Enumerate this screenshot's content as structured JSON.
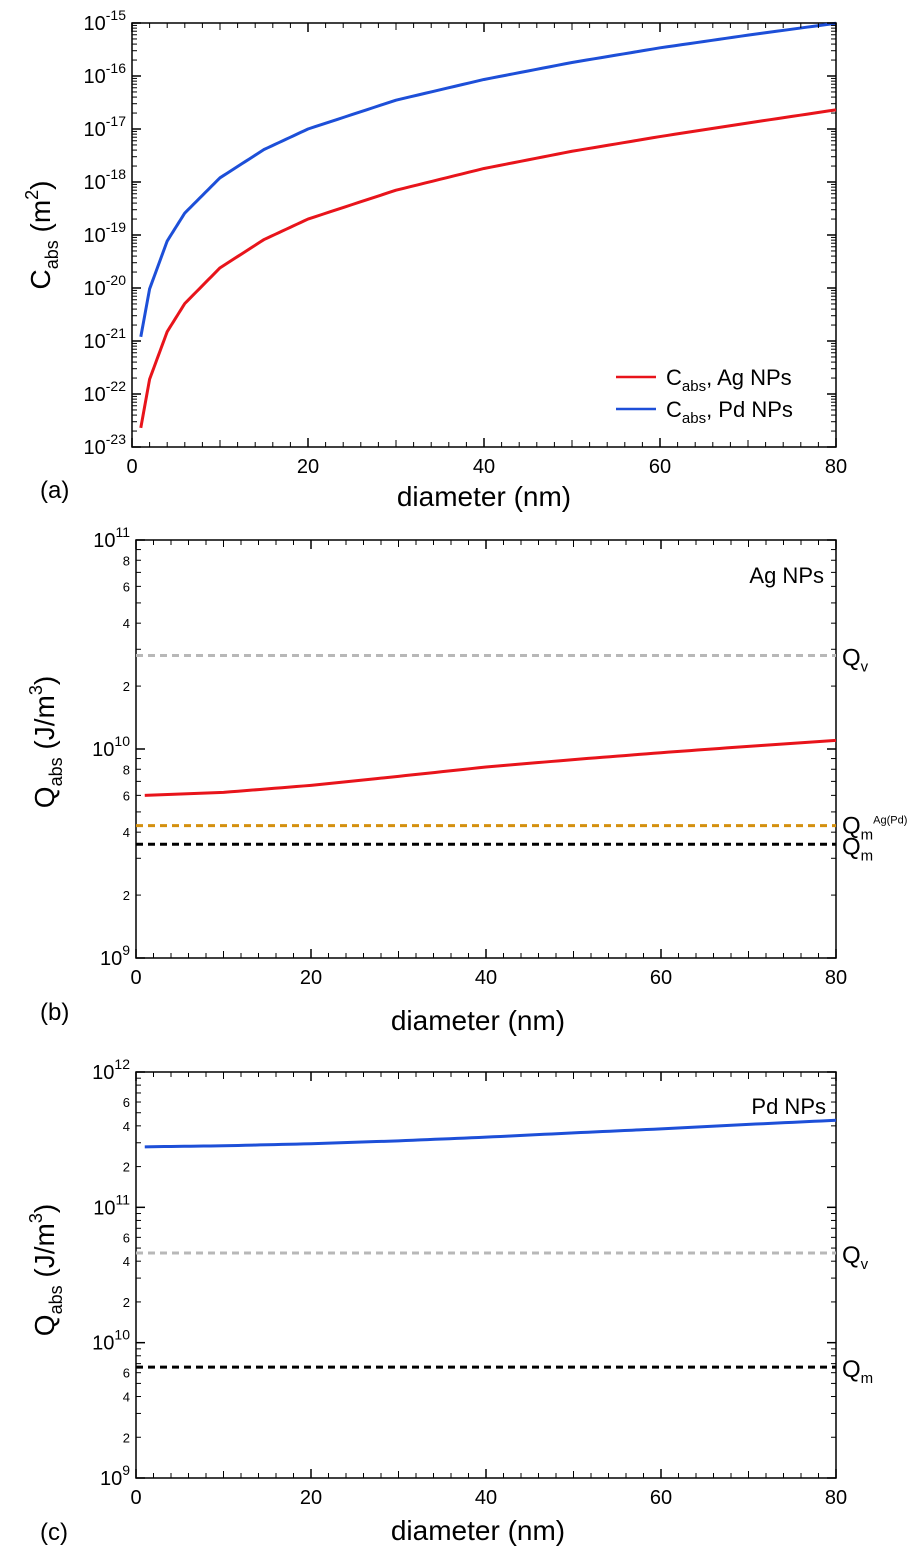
{
  "chart_data": [
    {
      "panel_label": "(a)",
      "type": "line",
      "xlabel": "diameter (nm)",
      "ylabel": {
        "main": "C",
        "sub": "abs",
        "unit_open": " (m",
        "unit_sup": "2",
        "unit_close": ")"
      },
      "xlim": [
        0,
        80
      ],
      "xticks": [
        "0",
        "20",
        "40",
        "60",
        "80"
      ],
      "ylim_exponents": [
        -23,
        -15
      ],
      "ylog": true,
      "ytick_exponents": [
        "-23",
        "-22",
        "-21",
        "-20",
        "-19",
        "-18",
        "-17",
        "-16",
        "-15"
      ],
      "ytick_base": "10",
      "legend_position": "bottom-right",
      "series": [
        {
          "name_main": "C",
          "name_sub": "abs",
          "name_rest": ", Ag NPs",
          "color": "#e8141b",
          "x": [
            1,
            2,
            4,
            6,
            10,
            15,
            20,
            30,
            40,
            50,
            60,
            70,
            80
          ],
          "y": [
            2.3e-23,
            1.9e-22,
            1.5e-21,
            5.1e-21,
            2.4e-20,
            8.2e-20,
            2e-19,
            7e-19,
            1.8e-18,
            3.8e-18,
            7.2e-18,
            1.3e-17,
            2.3e-17
          ]
        },
        {
          "name_main": "C",
          "name_sub": "abs",
          "name_rest": ", Pd NPs",
          "color": "#1d4fd8",
          "x": [
            1,
            2,
            4,
            6,
            10,
            15,
            20,
            30,
            40,
            50,
            60,
            70,
            80
          ],
          "y": [
            1.2e-21,
            9.6e-21,
            7.7e-20,
            2.6e-19,
            1.2e-18,
            4.1e-18,
            1e-17,
            3.5e-17,
            8.6e-17,
            1.8e-16,
            3.4e-16,
            5.9e-16,
            9.9e-16
          ]
        }
      ]
    },
    {
      "panel_label": "(b)",
      "type": "line",
      "title": "Ag NPs",
      "xlabel": "diameter (nm)",
      "ylabel": {
        "main": "Q",
        "sub": "abs",
        "unit_open": " (J/m",
        "unit_sup": "3",
        "unit_close": ")"
      },
      "xlim": [
        0,
        80
      ],
      "xticks": [
        "0",
        "20",
        "40",
        "60",
        "80"
      ],
      "ylim_exponents": [
        9,
        11
      ],
      "ylog": true,
      "ytick_exponents": [
        "9",
        "10",
        "11"
      ],
      "ytick_base": "10",
      "minor_tick_labels": [
        "2",
        "4",
        "6",
        "8"
      ],
      "series": [
        {
          "name": "",
          "color": "#e8141b",
          "x": [
            1,
            10,
            20,
            30,
            40,
            50,
            60,
            70,
            80
          ],
          "y": [
            6000000000.0,
            6200000000.0,
            6700000000.0,
            7400000000.0,
            8200000000.0,
            8900000000.0,
            9600000000.0,
            10300000000.0,
            11000000000.0
          ]
        }
      ],
      "hlines": [
        {
          "y": 28000000000.0,
          "color": "#b8b8b8",
          "label_main": "Q",
          "label_sub": "v",
          "label_sup": ""
        },
        {
          "y": 4300000000.0,
          "color": "#d4900f",
          "label_main": "Q",
          "label_sub": "m",
          "label_sup": "Ag(Pd)"
        },
        {
          "y": 3500000000.0,
          "color": "#000000",
          "label_main": "Q",
          "label_sub": "m",
          "label_sup": ""
        }
      ]
    },
    {
      "panel_label": "(c)",
      "type": "line",
      "title": "Pd NPs",
      "xlabel": "diameter (nm)",
      "ylabel": {
        "main": "Q",
        "sub": "abs",
        "unit_open": " (J/m",
        "unit_sup": "3",
        "unit_close": ")"
      },
      "xlim": [
        0,
        80
      ],
      "xticks": [
        "0",
        "20",
        "40",
        "60",
        "80"
      ],
      "ylim_exponents": [
        9,
        12
      ],
      "ylog": true,
      "ytick_exponents": [
        "9",
        "10",
        "11",
        "12"
      ],
      "ytick_base": "10",
      "minor_tick_labels": [
        "2",
        "4",
        "6"
      ],
      "series": [
        {
          "name": "",
          "color": "#1d4fd8",
          "x": [
            1,
            10,
            20,
            30,
            40,
            50,
            60,
            70,
            80
          ],
          "y": [
            280000000000.0,
            285000000000.0,
            295000000000.0,
            310000000000.0,
            330000000000.0,
            355000000000.0,
            380000000000.0,
            410000000000.0,
            440000000000.0
          ]
        }
      ],
      "hlines": [
        {
          "y": 46000000000.0,
          "color": "#b8b8b8",
          "label_main": "Q",
          "label_sub": "v",
          "label_sup": ""
        },
        {
          "y": 6600000000.0,
          "color": "#000000",
          "label_main": "Q",
          "label_sub": "m",
          "label_sup": ""
        }
      ]
    }
  ]
}
